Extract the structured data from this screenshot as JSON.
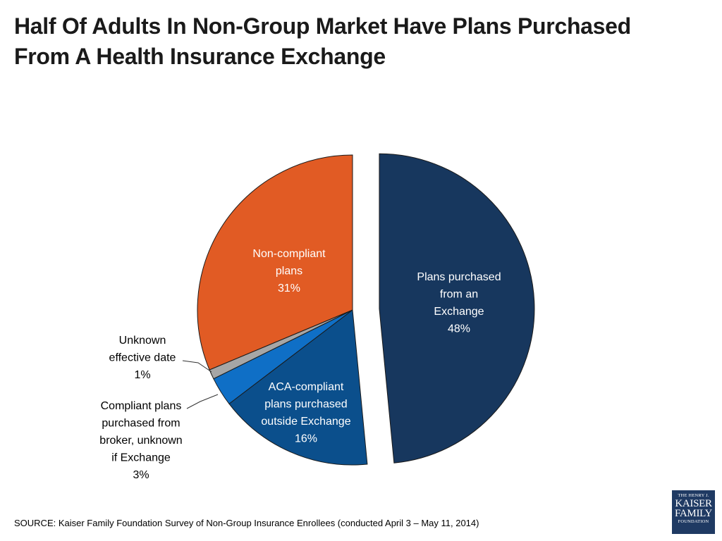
{
  "title": {
    "line1": "Half Of Adults In Non-Group Market Have Plans Purchased",
    "line2": "From A Health Insurance Exchange"
  },
  "chart_data": {
    "type": "pie",
    "title": "Half Of Adults In Non-Group Market Have Plans Purchased From A Health Insurance Exchange",
    "slices": [
      {
        "label": [
          "Plans purchased",
          "from an",
          "Exchange",
          "48%"
        ],
        "value": 48,
        "color": "#17375e",
        "text_color": "#ffffff",
        "exploded": true
      },
      {
        "label": [
          "ACA-compliant",
          "plans purchased",
          "outside Exchange",
          "16%"
        ],
        "value": 16,
        "color": "#0b4f8c",
        "text_color": "#ffffff",
        "exploded": false
      },
      {
        "label": [
          "Compliant plans",
          "purchased from",
          "broker, unknown",
          "if Exchange",
          "3%"
        ],
        "value": 3,
        "color": "#0f6fc6",
        "text_color": "#000000",
        "exploded": false,
        "external": true
      },
      {
        "label": [
          "Unknown",
          "effective date",
          "1%"
        ],
        "value": 1,
        "color": "#a6a6a6",
        "text_color": "#000000",
        "exploded": false,
        "external": true
      },
      {
        "label": [
          "Non-compliant",
          "plans",
          "31%"
        ],
        "value": 31,
        "color": "#e15b24",
        "text_color": "#ffffff",
        "exploded": false
      }
    ]
  },
  "source": "SOURCE: Kaiser Family Foundation Survey of Non-Group Insurance Enrollees  (conducted April 3 – May 11, 2014)",
  "logo": {
    "line1": "THE HENRY J.",
    "line2": "KAISER",
    "line3": "FAMILY",
    "line4": "FOUNDATION"
  }
}
